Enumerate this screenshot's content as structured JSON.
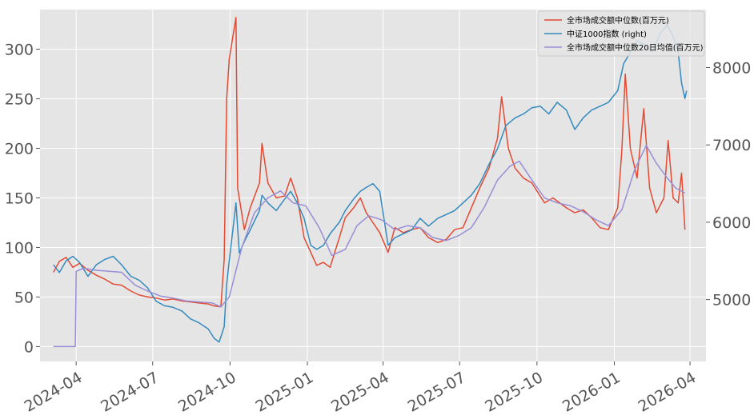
{
  "chart_data": {
    "type": "line",
    "title": "",
    "xlabel": "",
    "ylabel_left": "",
    "ylabel_right": "",
    "ylim_left": [
      -15,
      340
    ],
    "ylim_right": [
      4200,
      8750
    ],
    "yticks_left": [
      0,
      50,
      100,
      150,
      200,
      250,
      300
    ],
    "yticks_right": [
      5000,
      6000,
      7000,
      8000
    ],
    "xlim": [
      "2024-02-18",
      "2026-04-20"
    ],
    "xticks": [
      {
        "date": "2024-04-01",
        "label": "2024-04"
      },
      {
        "date": "2024-07-01",
        "label": "2024-07"
      },
      {
        "date": "2024-10-01",
        "label": "2024-10"
      },
      {
        "date": "2025-01-01",
        "label": "2025-01"
      },
      {
        "date": "2025-04-01",
        "label": "2025-04"
      },
      {
        "date": "2025-07-01",
        "label": "2025-07"
      },
      {
        "date": "2025-10-01",
        "label": "2025-10"
      },
      {
        "date": "2026-01-01",
        "label": "2026-01"
      },
      {
        "date": "2026-04-01",
        "label": "2026-04"
      }
    ],
    "grid": true,
    "legend_position": "top-right",
    "series": [
      {
        "name": "全市场成交额中位数(百万元)",
        "axis": "left",
        "color": "#E24A33",
        "points": [
          [
            "2024-03-05",
            75
          ],
          [
            "2024-03-12",
            86
          ],
          [
            "2024-03-20",
            90
          ],
          [
            "2024-03-28",
            80
          ],
          [
            "2024-04-05",
            84
          ],
          [
            "2024-04-15",
            77
          ],
          [
            "2024-04-25",
            72
          ],
          [
            "2024-05-05",
            68
          ],
          [
            "2024-05-15",
            63
          ],
          [
            "2024-05-25",
            62
          ],
          [
            "2024-06-05",
            56
          ],
          [
            "2024-06-15",
            52
          ],
          [
            "2024-06-25",
            50
          ],
          [
            "2024-07-05",
            49
          ],
          [
            "2024-07-15",
            47
          ],
          [
            "2024-07-25",
            48
          ],
          [
            "2024-08-05",
            46
          ],
          [
            "2024-08-15",
            45
          ],
          [
            "2024-08-25",
            44
          ],
          [
            "2024-09-05",
            43
          ],
          [
            "2024-09-12",
            41
          ],
          [
            "2024-09-20",
            40
          ],
          [
            "2024-09-24",
            88
          ],
          [
            "2024-09-27",
            250
          ],
          [
            "2024-09-30",
            290
          ],
          [
            "2024-10-08",
            332
          ],
          [
            "2024-10-10",
            160
          ],
          [
            "2024-10-18",
            118
          ],
          [
            "2024-10-25",
            140
          ],
          [
            "2024-11-05",
            165
          ],
          [
            "2024-11-08",
            205
          ],
          [
            "2024-11-15",
            165
          ],
          [
            "2024-11-25",
            150
          ],
          [
            "2024-12-05",
            152
          ],
          [
            "2024-12-12",
            170
          ],
          [
            "2024-12-20",
            150
          ],
          [
            "2024-12-28",
            110
          ],
          [
            "2025-01-05",
            95
          ],
          [
            "2025-01-12",
            82
          ],
          [
            "2025-01-20",
            85
          ],
          [
            "2025-01-28",
            80
          ],
          [
            "2025-02-08",
            110
          ],
          [
            "2025-02-15",
            130
          ],
          [
            "2025-02-25",
            140
          ],
          [
            "2025-03-05",
            150
          ],
          [
            "2025-03-12",
            135
          ],
          [
            "2025-03-20",
            125
          ],
          [
            "2025-03-28",
            115
          ],
          [
            "2025-04-07",
            95
          ],
          [
            "2025-04-15",
            120
          ],
          [
            "2025-04-25",
            115
          ],
          [
            "2025-05-05",
            118
          ],
          [
            "2025-05-15",
            120
          ],
          [
            "2025-05-25",
            110
          ],
          [
            "2025-06-05",
            105
          ],
          [
            "2025-06-15",
            108
          ],
          [
            "2025-06-25",
            118
          ],
          [
            "2025-07-05",
            120
          ],
          [
            "2025-07-15",
            140
          ],
          [
            "2025-07-25",
            160
          ],
          [
            "2025-08-05",
            180
          ],
          [
            "2025-08-15",
            210
          ],
          [
            "2025-08-20",
            252
          ],
          [
            "2025-08-28",
            200
          ],
          [
            "2025-09-05",
            180
          ],
          [
            "2025-09-15",
            170
          ],
          [
            "2025-09-25",
            165
          ],
          [
            "2025-10-10",
            145
          ],
          [
            "2025-10-20",
            150
          ],
          [
            "2025-11-05",
            140
          ],
          [
            "2025-11-15",
            135
          ],
          [
            "2025-11-25",
            138
          ],
          [
            "2025-12-05",
            130
          ],
          [
            "2025-12-15",
            120
          ],
          [
            "2025-12-25",
            118
          ],
          [
            "2026-01-05",
            140
          ],
          [
            "2026-01-10",
            198
          ],
          [
            "2026-01-14",
            275
          ],
          [
            "2026-01-20",
            200
          ],
          [
            "2026-01-28",
            170
          ],
          [
            "2026-02-05",
            240
          ],
          [
            "2026-02-12",
            160
          ],
          [
            "2026-02-20",
            135
          ],
          [
            "2026-03-01",
            150
          ],
          [
            "2026-03-06",
            208
          ],
          [
            "2026-03-12",
            150
          ],
          [
            "2026-03-18",
            145
          ],
          [
            "2026-03-22",
            175
          ],
          [
            "2026-03-26",
            118
          ]
        ]
      },
      {
        "name": "中证1000指数 (right)",
        "axis": "right",
        "color": "#348ABD",
        "points": [
          [
            "2024-03-05",
            5450
          ],
          [
            "2024-03-12",
            5350
          ],
          [
            "2024-03-20",
            5500
          ],
          [
            "2024-03-28",
            5560
          ],
          [
            "2024-04-05",
            5480
          ],
          [
            "2024-04-15",
            5300
          ],
          [
            "2024-04-25",
            5450
          ],
          [
            "2024-05-05",
            5520
          ],
          [
            "2024-05-15",
            5560
          ],
          [
            "2024-05-25",
            5450
          ],
          [
            "2024-06-05",
            5300
          ],
          [
            "2024-06-15",
            5250
          ],
          [
            "2024-06-25",
            5150
          ],
          [
            "2024-07-05",
            4980
          ],
          [
            "2024-07-15",
            4920
          ],
          [
            "2024-07-25",
            4900
          ],
          [
            "2024-08-05",
            4850
          ],
          [
            "2024-08-15",
            4750
          ],
          [
            "2024-08-25",
            4700
          ],
          [
            "2024-09-05",
            4620
          ],
          [
            "2024-09-12",
            4500
          ],
          [
            "2024-09-18",
            4450
          ],
          [
            "2024-09-24",
            4650
          ],
          [
            "2024-09-27",
            5200
          ],
          [
            "2024-09-30",
            5500
          ],
          [
            "2024-10-08",
            6250
          ],
          [
            "2024-10-12",
            5600
          ],
          [
            "2024-10-18",
            5750
          ],
          [
            "2024-10-25",
            5900
          ],
          [
            "2024-11-05",
            6150
          ],
          [
            "2024-11-08",
            6350
          ],
          [
            "2024-11-15",
            6250
          ],
          [
            "2024-11-25",
            6150
          ],
          [
            "2024-12-05",
            6300
          ],
          [
            "2024-12-12",
            6400
          ],
          [
            "2024-12-20",
            6250
          ],
          [
            "2024-12-28",
            6050
          ],
          [
            "2025-01-05",
            5700
          ],
          [
            "2025-01-12",
            5650
          ],
          [
            "2025-01-20",
            5700
          ],
          [
            "2025-01-28",
            5850
          ],
          [
            "2025-02-08",
            6000
          ],
          [
            "2025-02-15",
            6150
          ],
          [
            "2025-02-25",
            6300
          ],
          [
            "2025-03-05",
            6400
          ],
          [
            "2025-03-12",
            6450
          ],
          [
            "2025-03-20",
            6500
          ],
          [
            "2025-03-28",
            6400
          ],
          [
            "2025-04-07",
            5700
          ],
          [
            "2025-04-15",
            5800
          ],
          [
            "2025-04-25",
            5850
          ],
          [
            "2025-05-05",
            5900
          ],
          [
            "2025-05-15",
            6050
          ],
          [
            "2025-05-25",
            5950
          ],
          [
            "2025-06-05",
            6050
          ],
          [
            "2025-06-15",
            6100
          ],
          [
            "2025-06-25",
            6150
          ],
          [
            "2025-07-05",
            6250
          ],
          [
            "2025-07-15",
            6350
          ],
          [
            "2025-07-25",
            6500
          ],
          [
            "2025-08-05",
            6750
          ],
          [
            "2025-08-15",
            6950
          ],
          [
            "2025-08-25",
            7250
          ],
          [
            "2025-09-05",
            7350
          ],
          [
            "2025-09-15",
            7400
          ],
          [
            "2025-09-25",
            7480
          ],
          [
            "2025-10-05",
            7500
          ],
          [
            "2025-10-15",
            7400
          ],
          [
            "2025-10-25",
            7550
          ],
          [
            "2025-11-05",
            7450
          ],
          [
            "2025-11-15",
            7200
          ],
          [
            "2025-11-25",
            7350
          ],
          [
            "2025-12-05",
            7450
          ],
          [
            "2025-12-15",
            7500
          ],
          [
            "2025-12-25",
            7550
          ],
          [
            "2026-01-05",
            7700
          ],
          [
            "2026-01-12",
            8050
          ],
          [
            "2026-01-20",
            8200
          ],
          [
            "2026-01-28",
            8350
          ],
          [
            "2026-02-05",
            8300
          ],
          [
            "2026-02-15",
            8200
          ],
          [
            "2026-02-25",
            8450
          ],
          [
            "2026-03-05",
            8550
          ],
          [
            "2026-03-12",
            8400
          ],
          [
            "2026-03-18",
            8200
          ],
          [
            "2026-03-22",
            7800
          ],
          [
            "2026-03-26",
            7600
          ],
          [
            "2026-03-28",
            7700
          ]
        ]
      },
      {
        "name": "全市场成交额中位数20日均值(百万元)",
        "axis": "left",
        "color": "#988ED5",
        "points": [
          [
            "2024-03-05",
            0
          ],
          [
            "2024-03-31",
            0
          ],
          [
            "2024-04-01",
            76
          ],
          [
            "2024-04-10",
            79
          ],
          [
            "2024-04-25",
            77
          ],
          [
            "2024-05-10",
            76
          ],
          [
            "2024-05-25",
            75
          ],
          [
            "2024-06-10",
            62
          ],
          [
            "2024-06-25",
            56
          ],
          [
            "2024-07-10",
            51
          ],
          [
            "2024-07-25",
            49
          ],
          [
            "2024-08-10",
            46
          ],
          [
            "2024-08-25",
            45
          ],
          [
            "2024-09-10",
            44
          ],
          [
            "2024-09-20",
            40
          ],
          [
            "2024-09-30",
            50
          ],
          [
            "2024-10-15",
            100
          ],
          [
            "2024-10-30",
            135
          ],
          [
            "2024-11-15",
            150
          ],
          [
            "2024-11-30",
            157
          ],
          [
            "2024-12-15",
            145
          ],
          [
            "2024-12-30",
            142
          ],
          [
            "2025-01-15",
            120
          ],
          [
            "2025-01-30",
            92
          ],
          [
            "2025-02-15",
            98
          ],
          [
            "2025-03-01",
            122
          ],
          [
            "2025-03-15",
            132
          ],
          [
            "2025-03-30",
            128
          ],
          [
            "2025-04-15",
            118
          ],
          [
            "2025-04-30",
            122
          ],
          [
            "2025-05-15",
            120
          ],
          [
            "2025-05-30",
            110
          ],
          [
            "2025-06-15",
            107
          ],
          [
            "2025-06-30",
            112
          ],
          [
            "2025-07-15",
            120
          ],
          [
            "2025-07-30",
            140
          ],
          [
            "2025-08-15",
            168
          ],
          [
            "2025-08-30",
            182
          ],
          [
            "2025-09-10",
            187
          ],
          [
            "2025-09-25",
            168
          ],
          [
            "2025-10-10",
            150
          ],
          [
            "2025-10-25",
            145
          ],
          [
            "2025-11-10",
            142
          ],
          [
            "2025-11-25",
            136
          ],
          [
            "2025-12-10",
            128
          ],
          [
            "2025-12-25",
            122
          ],
          [
            "2026-01-10",
            138
          ],
          [
            "2026-01-25",
            178
          ],
          [
            "2026-02-08",
            203
          ],
          [
            "2026-02-20",
            185
          ],
          [
            "2026-03-05",
            170
          ],
          [
            "2026-03-15",
            160
          ],
          [
            "2026-03-26",
            155
          ]
        ]
      }
    ]
  },
  "colors": {
    "plot_background": "#E5E5E5",
    "grid": "#FFFFFF",
    "tick": "#555555"
  }
}
